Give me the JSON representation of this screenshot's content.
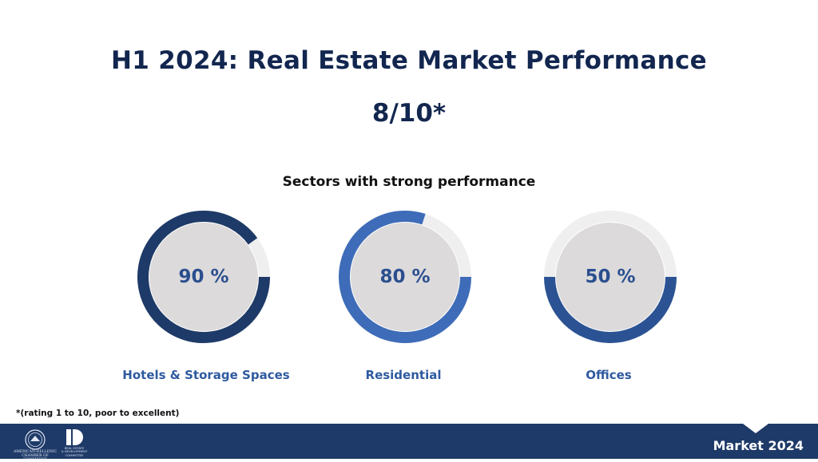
{
  "slide": {
    "title": "H1 2024: Real Estate Market Performance",
    "rating": "8/10*",
    "footnote": "*(rating 1 to 10, poor to excellent)",
    "footer_right": "Market 2024",
    "logo_left_text": [
      "AMERICAN-HELLENIC",
      "CHAMBER OF COMMERCE"
    ],
    "logo_right_text": [
      "REAL ESTATE",
      "& DEVELOPMENT",
      "COMMITTEE"
    ]
  },
  "chart_data": {
    "type": "pie",
    "title": "Sectors with strong performance",
    "unit": "%",
    "categories": [
      "Hotels & Storage Spaces",
      "Residential",
      "Offices"
    ],
    "values": [
      90,
      80,
      50
    ],
    "value_labels": [
      "90 %",
      "80 %",
      "50 %"
    ],
    "ring_colors": [
      "#1e3a68",
      "#3e6cb8",
      "#2b5394"
    ],
    "track_color": "#efefef",
    "inner_color": "#dcdadb"
  }
}
